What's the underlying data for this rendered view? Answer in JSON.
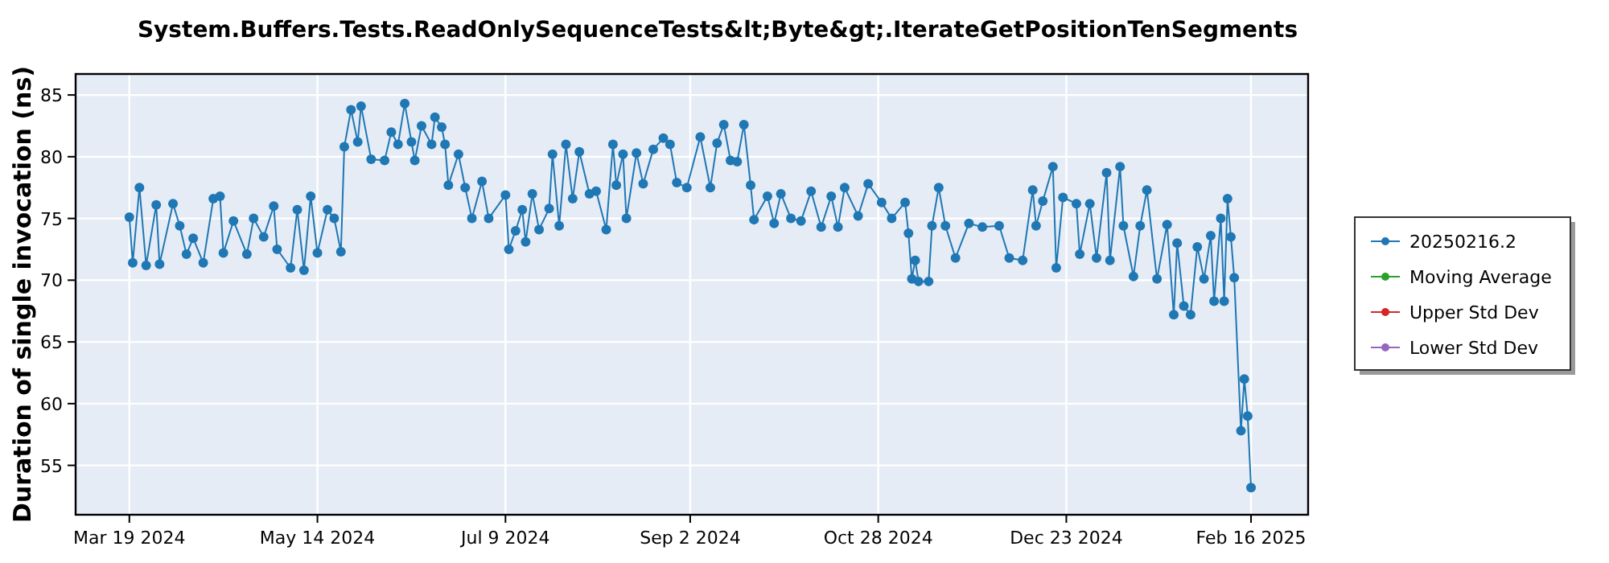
{
  "chart_data": {
    "type": "line",
    "title": "System.Buffers.Tests.ReadOnlySequenceTests&lt;Byte&gt;.IterateGetPositionTenSegments",
    "ylabel": "Duration of single invocation (ns)",
    "xlim": [
      "2024-03-03",
      "2025-03-05"
    ],
    "xticks": [
      {
        "value": "2024-03-19",
        "label": "Mar 19 2024"
      },
      {
        "value": "2024-05-14",
        "label": "May 14 2024"
      },
      {
        "value": "2024-07-09",
        "label": "Jul 9 2024"
      },
      {
        "value": "2024-09-02",
        "label": "Sep 2 2024"
      },
      {
        "value": "2024-10-28",
        "label": "Oct 28 2024"
      },
      {
        "value": "2024-12-23",
        "label": "Dec 23 2024"
      },
      {
        "value": "2025-02-16",
        "label": "Feb 16 2025"
      }
    ],
    "ylim": [
      51,
      86.7
    ],
    "yticks": [
      55,
      60,
      65,
      70,
      75,
      80,
      85
    ],
    "grid": true,
    "legend": "right",
    "marker": "circle",
    "line_style": "solid",
    "series": [
      {
        "name": "20250216.2",
        "color": "#1f77b4",
        "x": [
          "2024-03-19",
          "2024-03-20",
          "2024-03-22",
          "2024-03-24",
          "2024-03-27",
          "2024-03-28",
          "2024-04-01",
          "2024-04-03",
          "2024-04-05",
          "2024-04-07",
          "2024-04-10",
          "2024-04-13",
          "2024-04-15",
          "2024-04-16",
          "2024-04-19",
          "2024-04-23",
          "2024-04-25",
          "2024-04-28",
          "2024-05-01",
          "2024-05-02",
          "2024-05-06",
          "2024-05-08",
          "2024-05-10",
          "2024-05-12",
          "2024-05-14",
          "2024-05-17",
          "2024-05-19",
          "2024-05-21",
          "2024-05-22",
          "2024-05-24",
          "2024-05-26",
          "2024-05-27",
          "2024-05-30",
          "2024-06-03",
          "2024-06-05",
          "2024-06-07",
          "2024-06-09",
          "2024-06-11",
          "2024-06-12",
          "2024-06-14",
          "2024-06-17",
          "2024-06-18",
          "2024-06-20",
          "2024-06-21",
          "2024-06-22",
          "2024-06-25",
          "2024-06-27",
          "2024-06-29",
          "2024-07-02",
          "2024-07-04",
          "2024-07-09",
          "2024-07-10",
          "2024-07-12",
          "2024-07-14",
          "2024-07-15",
          "2024-07-17",
          "2024-07-19",
          "2024-07-22",
          "2024-07-23",
          "2024-07-25",
          "2024-07-27",
          "2024-07-29",
          "2024-07-31",
          "2024-08-03",
          "2024-08-05",
          "2024-08-08",
          "2024-08-10",
          "2024-08-11",
          "2024-08-13",
          "2024-08-14",
          "2024-08-17",
          "2024-08-19",
          "2024-08-22",
          "2024-08-25",
          "2024-08-27",
          "2024-08-29",
          "2024-09-01",
          "2024-09-05",
          "2024-09-08",
          "2024-09-10",
          "2024-09-12",
          "2024-09-14",
          "2024-09-16",
          "2024-09-18",
          "2024-09-20",
          "2024-09-21",
          "2024-09-25",
          "2024-09-27",
          "2024-09-29",
          "2024-10-02",
          "2024-10-05",
          "2024-10-08",
          "2024-10-11",
          "2024-10-14",
          "2024-10-16",
          "2024-10-18",
          "2024-10-22",
          "2024-10-25",
          "2024-10-29",
          "2024-11-01",
          "2024-11-05",
          "2024-11-06",
          "2024-11-07",
          "2024-11-08",
          "2024-11-09",
          "2024-11-12",
          "2024-11-13",
          "2024-11-15",
          "2024-11-17",
          "2024-11-20",
          "2024-11-24",
          "2024-11-28",
          "2024-12-03",
          "2024-12-06",
          "2024-12-10",
          "2024-12-13",
          "2024-12-14",
          "2024-12-16",
          "2024-12-19",
          "2024-12-20",
          "2024-12-22",
          "2024-12-26",
          "2024-12-27",
          "2024-12-30",
          "2025-01-01",
          "2025-01-04",
          "2025-01-05",
          "2025-01-08",
          "2025-01-09",
          "2025-01-12",
          "2025-01-14",
          "2025-01-16",
          "2025-01-19",
          "2025-01-22",
          "2025-01-24",
          "2025-01-25",
          "2025-01-27",
          "2025-01-29",
          "2025-01-31",
          "2025-02-02",
          "2025-02-04",
          "2025-02-05",
          "2025-02-07",
          "2025-02-08",
          "2025-02-09",
          "2025-02-10",
          "2025-02-11",
          "2025-02-13",
          "2025-02-14",
          "2025-02-15",
          "2025-02-16"
        ],
        "values": [
          75.1,
          71.4,
          77.5,
          71.2,
          76.1,
          71.3,
          76.2,
          74.4,
          72.1,
          73.4,
          71.4,
          76.6,
          76.8,
          72.2,
          74.8,
          72.1,
          75.0,
          73.5,
          76.0,
          72.5,
          71.0,
          75.7,
          70.8,
          76.8,
          72.2,
          75.7,
          75.0,
          72.3,
          80.8,
          83.8,
          81.2,
          84.1,
          79.8,
          79.7,
          82.0,
          81.0,
          84.3,
          81.2,
          79.7,
          82.5,
          81.0,
          83.2,
          82.4,
          81.0,
          77.7,
          80.2,
          77.5,
          75.0,
          78.0,
          75.0,
          76.9,
          72.5,
          74.0,
          75.7,
          73.1,
          77.0,
          74.1,
          75.8,
          80.2,
          74.4,
          81.0,
          76.6,
          80.4,
          77.0,
          77.2,
          74.1,
          81.0,
          77.7,
          80.2,
          75.0,
          80.3,
          77.8,
          80.6,
          81.5,
          81.0,
          77.9,
          77.5,
          81.6,
          77.5,
          81.1,
          82.6,
          79.7,
          79.6,
          82.6,
          77.7,
          74.9,
          76.8,
          74.6,
          77.0,
          75.0,
          74.8,
          77.2,
          74.3,
          76.8,
          74.3,
          77.5,
          75.2,
          77.8,
          76.3,
          75.0,
          76.3,
          73.8,
          70.1,
          71.6,
          69.9,
          69.9,
          74.4,
          77.5,
          74.4,
          71.8,
          74.6,
          74.3,
          74.4,
          71.8,
          71.6,
          77.3,
          74.4,
          76.4,
          79.2,
          71.0,
          76.7,
          76.2,
          72.1,
          76.2,
          71.8,
          78.7,
          71.6,
          79.2,
          74.4,
          70.3,
          74.4,
          77.3,
          70.1,
          74.5,
          67.2,
          73.0,
          67.9,
          67.2,
          72.7,
          70.1,
          73.6,
          68.3,
          75.0,
          68.3,
          76.6,
          73.5,
          70.2,
          57.8,
          62.0,
          59.0,
          53.2
        ]
      },
      {
        "name": "Moving Average",
        "color": "#2ca02c"
      },
      {
        "name": "Upper Std Dev",
        "color": "#d62728"
      },
      {
        "name": "Lower Std Dev",
        "color": "#9467bd"
      }
    ]
  }
}
